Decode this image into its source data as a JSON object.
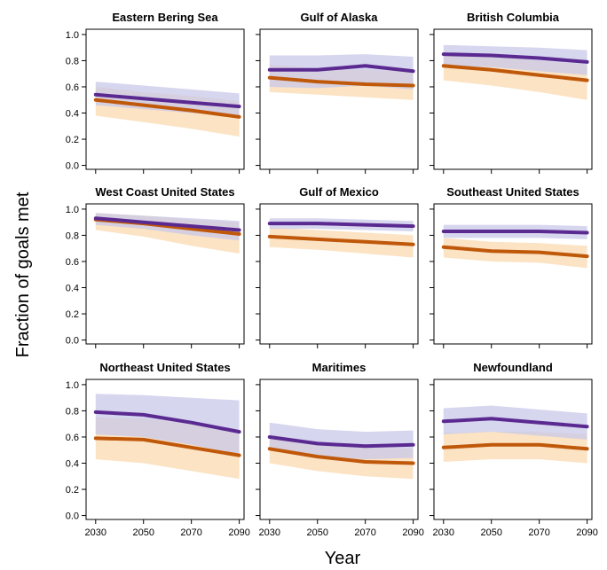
{
  "chart_data": {
    "type": "line",
    "xlabel": "Year",
    "ylabel": "Fraction of goals met",
    "x": [
      2030,
      2050,
      2070,
      2090
    ],
    "xlim": [
      2026,
      2092
    ],
    "ylim": [
      -0.03,
      1.04
    ],
    "yticks": [
      "0.0",
      "0.2",
      "0.4",
      "0.6",
      "0.8",
      "1.0"
    ],
    "xticks": [
      "2030",
      "2050",
      "2070",
      "2090"
    ],
    "colors": {
      "series_a": "#5b2a91",
      "series_a_band": "#c8c8ea",
      "series_b": "#c0580a",
      "series_b_band": "#f9d9b0"
    },
    "panels": [
      {
        "title": "Eastern Bering Sea",
        "series_a": [
          0.54,
          0.51,
          0.48,
          0.45
        ],
        "series_a_band": [
          [
            0.46,
            0.64
          ],
          [
            0.43,
            0.61
          ],
          [
            0.4,
            0.58
          ],
          [
            0.37,
            0.55
          ]
        ],
        "series_b": [
          0.5,
          0.46,
          0.42,
          0.37
        ],
        "series_b_band": [
          [
            0.38,
            0.6
          ],
          [
            0.33,
            0.56
          ],
          [
            0.28,
            0.53
          ],
          [
            0.22,
            0.49
          ]
        ]
      },
      {
        "title": "Gulf of Alaska",
        "series_a": [
          0.73,
          0.73,
          0.76,
          0.72
        ],
        "series_a_band": [
          [
            0.6,
            0.84
          ],
          [
            0.59,
            0.84
          ],
          [
            0.61,
            0.85
          ],
          [
            0.58,
            0.83
          ]
        ],
        "series_b": [
          0.67,
          0.64,
          0.62,
          0.61
        ],
        "series_b_band": [
          [
            0.56,
            0.77
          ],
          [
            0.54,
            0.74
          ],
          [
            0.52,
            0.73
          ],
          [
            0.5,
            0.72
          ]
        ]
      },
      {
        "title": "British Columbia",
        "series_a": [
          0.85,
          0.84,
          0.82,
          0.79
        ],
        "series_a_band": [
          [
            0.76,
            0.92
          ],
          [
            0.75,
            0.91
          ],
          [
            0.72,
            0.9
          ],
          [
            0.69,
            0.88
          ]
        ],
        "series_b": [
          0.76,
          0.73,
          0.69,
          0.65
        ],
        "series_b_band": [
          [
            0.65,
            0.86
          ],
          [
            0.61,
            0.83
          ],
          [
            0.56,
            0.8
          ],
          [
            0.5,
            0.77
          ]
        ]
      },
      {
        "title": "West Coast United States",
        "series_a": [
          0.93,
          0.9,
          0.87,
          0.84
        ],
        "series_a_band": [
          [
            0.88,
            0.97
          ],
          [
            0.85,
            0.95
          ],
          [
            0.8,
            0.93
          ],
          [
            0.76,
            0.91
          ]
        ],
        "series_b": [
          0.92,
          0.89,
          0.85,
          0.81
        ],
        "series_b_band": [
          [
            0.84,
            0.97
          ],
          [
            0.79,
            0.95
          ],
          [
            0.72,
            0.92
          ],
          [
            0.66,
            0.9
          ]
        ]
      },
      {
        "title": "Gulf of Mexico",
        "series_a": [
          0.89,
          0.89,
          0.88,
          0.87
        ],
        "series_a_band": [
          [
            0.85,
            0.93
          ],
          [
            0.85,
            0.93
          ],
          [
            0.84,
            0.92
          ],
          [
            0.83,
            0.91
          ]
        ],
        "series_b": [
          0.79,
          0.77,
          0.75,
          0.73
        ],
        "series_b_band": [
          [
            0.71,
            0.86
          ],
          [
            0.69,
            0.84
          ],
          [
            0.66,
            0.82
          ],
          [
            0.63,
            0.8
          ]
        ]
      },
      {
        "title": "Southeast United States",
        "series_a": [
          0.83,
          0.83,
          0.83,
          0.82
        ],
        "series_a_band": [
          [
            0.78,
            0.88
          ],
          [
            0.78,
            0.88
          ],
          [
            0.78,
            0.88
          ],
          [
            0.77,
            0.87
          ]
        ],
        "series_b": [
          0.71,
          0.68,
          0.67,
          0.64
        ],
        "series_b_band": [
          [
            0.63,
            0.78
          ],
          [
            0.6,
            0.75
          ],
          [
            0.59,
            0.74
          ],
          [
            0.55,
            0.72
          ]
        ]
      },
      {
        "title": "Northeast United States",
        "series_a": [
          0.79,
          0.77,
          0.71,
          0.64
        ],
        "series_a_band": [
          [
            0.62,
            0.93
          ],
          [
            0.6,
            0.92
          ],
          [
            0.54,
            0.9
          ],
          [
            0.47,
            0.88
          ]
        ],
        "series_b": [
          0.59,
          0.58,
          0.52,
          0.46
        ],
        "series_b_band": [
          [
            0.43,
            0.75
          ],
          [
            0.4,
            0.74
          ],
          [
            0.34,
            0.7
          ],
          [
            0.28,
            0.66
          ]
        ]
      },
      {
        "title": "Maritimes",
        "series_a": [
          0.6,
          0.55,
          0.53,
          0.54
        ],
        "series_a_band": [
          [
            0.5,
            0.71
          ],
          [
            0.45,
            0.66
          ],
          [
            0.43,
            0.64
          ],
          [
            0.44,
            0.65
          ]
        ],
        "series_b": [
          0.51,
          0.45,
          0.41,
          0.4
        ],
        "series_b_band": [
          [
            0.4,
            0.62
          ],
          [
            0.34,
            0.56
          ],
          [
            0.3,
            0.52
          ],
          [
            0.28,
            0.51
          ]
        ]
      },
      {
        "title": "Newfoundland",
        "series_a": [
          0.72,
          0.74,
          0.71,
          0.68
        ],
        "series_a_band": [
          [
            0.62,
            0.82
          ],
          [
            0.64,
            0.84
          ],
          [
            0.61,
            0.81
          ],
          [
            0.58,
            0.78
          ]
        ],
        "series_b": [
          0.52,
          0.54,
          0.54,
          0.51
        ],
        "series_b_band": [
          [
            0.41,
            0.63
          ],
          [
            0.43,
            0.64
          ],
          [
            0.43,
            0.64
          ],
          [
            0.4,
            0.62
          ]
        ]
      }
    ]
  }
}
